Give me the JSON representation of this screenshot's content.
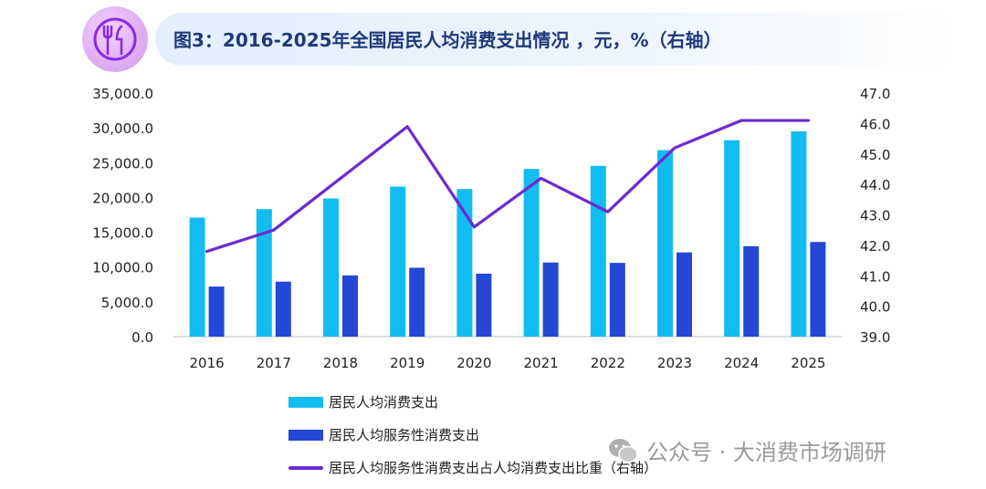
{
  "header": {
    "title": "图3：2016-2025年全国居民人均消费支出情况 ，元，%（右轴）",
    "badge_icon": "utensils-icon"
  },
  "watermark": {
    "text": "公众号 · 大消费市场调研",
    "icon": "wechat-icon"
  },
  "colors": {
    "bar1": "#11bdf0",
    "bar2": "#2547d6",
    "line": "#6a2ccf",
    "title": "#1f3a7a"
  },
  "chart_data": {
    "type": "bar",
    "categories": [
      "2016",
      "2017",
      "2018",
      "2019",
      "2020",
      "2021",
      "2022",
      "2023",
      "2024",
      "2025"
    ],
    "series": [
      {
        "name": "居民人均消费支出",
        "type": "bar",
        "axis": "left",
        "values": [
          17111,
          18322,
          19853,
          21559,
          21210,
          24100,
          24538,
          26796,
          28227,
          29500
        ]
      },
      {
        "name": "居民人均服务性消费支出",
        "type": "bar",
        "axis": "left",
        "values": [
          7200,
          7900,
          8800,
          9900,
          9050,
          10650,
          10600,
          12100,
          13000,
          13600
        ]
      },
      {
        "name": "居民人均服务性消费支出占人均消费支出比重（右轴）",
        "type": "line",
        "axis": "right",
        "values": [
          41.8,
          42.5,
          44.2,
          45.9,
          42.6,
          44.2,
          43.1,
          45.2,
          46.1,
          46.1
        ]
      }
    ],
    "y_left": {
      "min": 0,
      "max": 35000,
      "ticks": [
        "0.0",
        "5,000.0",
        "10,000.0",
        "15,000.0",
        "20,000.0",
        "25,000.0",
        "30,000.0",
        "35,000.0"
      ]
    },
    "y_right": {
      "min": 39,
      "max": 47,
      "ticks": [
        "39.0",
        "40.0",
        "41.0",
        "42.0",
        "43.0",
        "44.0",
        "45.0",
        "46.0",
        "47.0"
      ]
    },
    "grid": false,
    "legend_position": "bottom-left"
  }
}
